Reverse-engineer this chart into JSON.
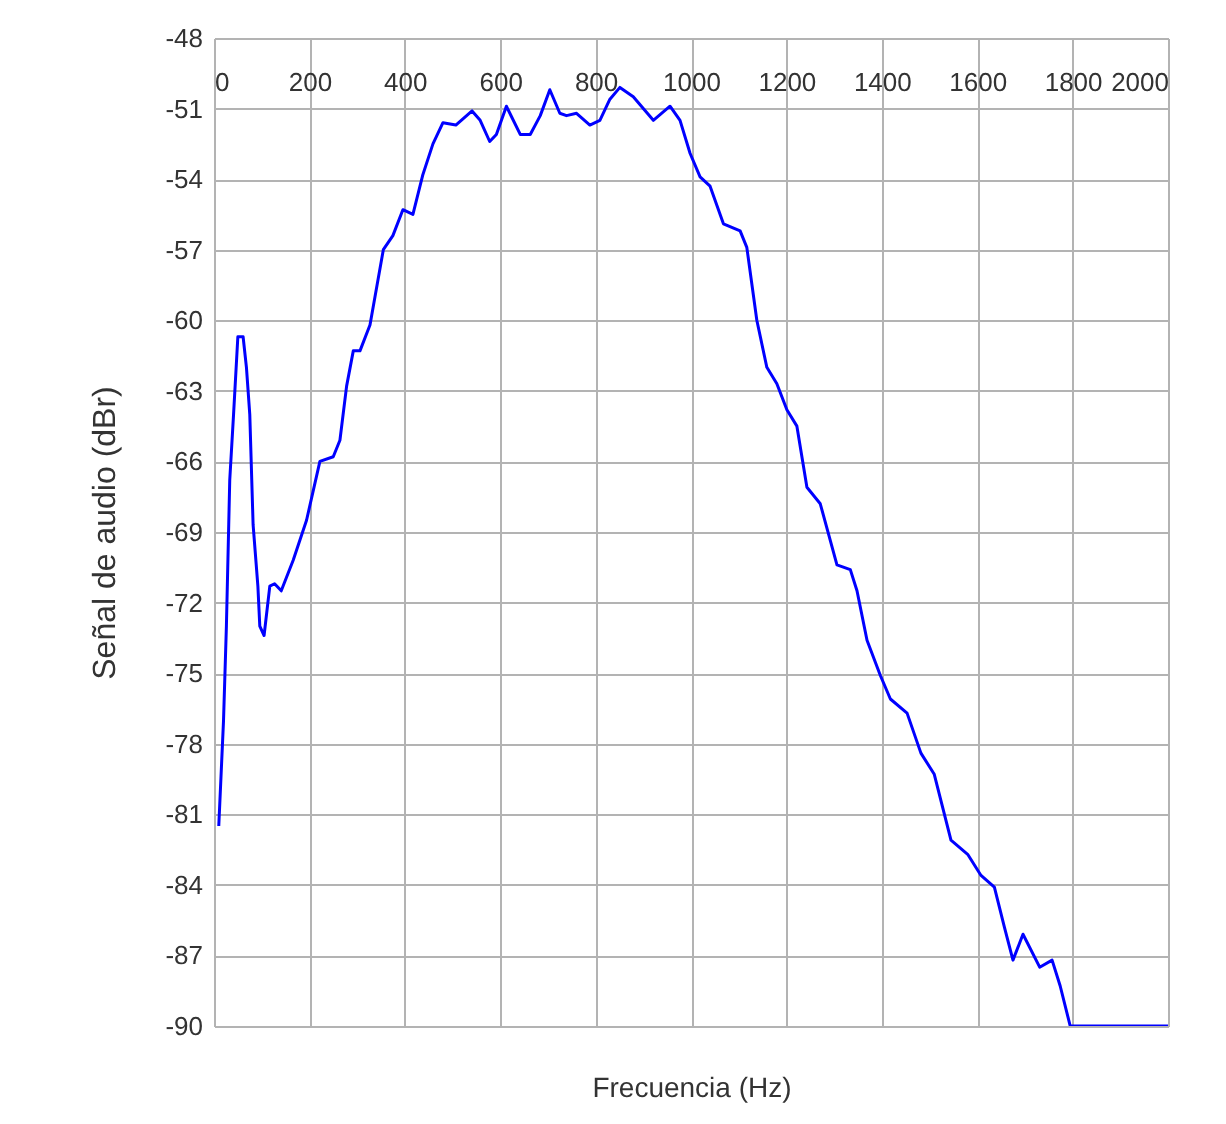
{
  "chart_data": {
    "type": "line",
    "xlabel": "Frecuencia (Hz)",
    "ylabel": "Señal de audio (dBr)",
    "xlim": [
      0,
      2000
    ],
    "xticks": [
      0,
      200,
      400,
      600,
      800,
      1000,
      1200,
      1400,
      1600,
      1800,
      2000
    ],
    "ylim": [
      -90,
      -48
    ],
    "yticks": [
      -90,
      -87,
      -84,
      -81,
      -78,
      -75,
      -72,
      -69,
      -66,
      -63,
      -60,
      -57,
      -54,
      -51,
      -48
    ],
    "grid": true,
    "marker": "none",
    "line_style": "solid",
    "series": [
      {
        "color": "#0000ff",
        "x": [
          10,
          20,
          26,
          33,
          41,
          50,
          61,
          68,
          75,
          82,
          92,
          96,
          105,
          117,
          127,
          141,
          166,
          194,
          222,
          250,
          264,
          278,
          292,
          306,
          327,
          355,
          375,
          396,
          417,
          438,
          459,
          480,
          507,
          541,
          558,
          578,
          592,
          613,
          642,
          663,
          684,
          704,
          725,
          739,
          760,
          788,
          809,
          830,
          851,
          879,
          921,
          956,
          977,
          998,
          1019,
          1040,
          1068,
          1103,
          1117,
          1138,
          1159,
          1180,
          1201,
          1222,
          1243,
          1271,
          1306,
          1334,
          1348,
          1369,
          1397,
          1418,
          1453,
          1482,
          1510,
          1545,
          1580,
          1608,
          1636,
          1657,
          1675,
          1696,
          1731,
          1757,
          1774,
          1795,
          2000
        ],
        "values": [
          -81.5,
          -77,
          -73,
          -66.8,
          -64,
          -60.7,
          -60.7,
          -62,
          -64,
          -68.7,
          -71.3,
          -73,
          -73.4,
          -71.3,
          -71.2,
          -71.5,
          -70.2,
          -68.5,
          -66,
          -65.8,
          -65.1,
          -62.8,
          -61.3,
          -61.3,
          -60.2,
          -57,
          -56.4,
          -55.3,
          -55.5,
          -53.8,
          -52.5,
          -51.6,
          -51.7,
          -51.1,
          -51.5,
          -52.4,
          -52.1,
          -50.9,
          -52.1,
          -52.1,
          -51.3,
          -50.2,
          -51.2,
          -51.3,
          -51.2,
          -51.7,
          -51.5,
          -50.6,
          -50.1,
          -50.5,
          -51.5,
          -50.9,
          -51.5,
          -52.9,
          -53.9,
          -54.3,
          -55.9,
          -56.2,
          -56.9,
          -60,
          -62,
          -62.7,
          -63.8,
          -64.5,
          -67.1,
          -67.8,
          -70.4,
          -70.6,
          -71.5,
          -73.6,
          -75.1,
          -76.1,
          -76.7,
          -78.4,
          -79.3,
          -82.1,
          -82.7,
          -83.6,
          -84.1,
          -85.8,
          -87.2,
          -86.1,
          -87.5,
          -87.2,
          -88.3,
          -90,
          -90
        ]
      }
    ]
  }
}
